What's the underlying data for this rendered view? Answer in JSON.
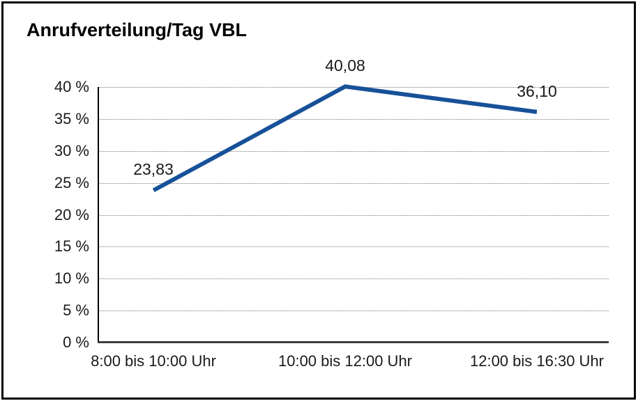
{
  "chart_data": {
    "type": "line",
    "title": "Anrufverteilung/Tag VBL",
    "categories": [
      "8:00 bis 10:00 Uhr",
      "10:00 bis 12:00 Uhr",
      "12:00 bis 16:30 Uhr"
    ],
    "values": [
      23.83,
      40.08,
      36.1
    ],
    "data_labels": [
      "23,83",
      "40,08",
      "36,10"
    ],
    "xlabel": "",
    "ylabel": "",
    "ylim": [
      0,
      40
    ],
    "ytick_step": 5,
    "y_tick_labels": [
      "0 %",
      "5 %",
      "10 %",
      "15 %",
      "20 %",
      "25 %",
      "30 %",
      "35 %",
      "40 %"
    ],
    "grid": "horizontal-dotted",
    "legend": "none",
    "line_color": "#175198",
    "line_width": 6,
    "frame_color": "#000000"
  }
}
